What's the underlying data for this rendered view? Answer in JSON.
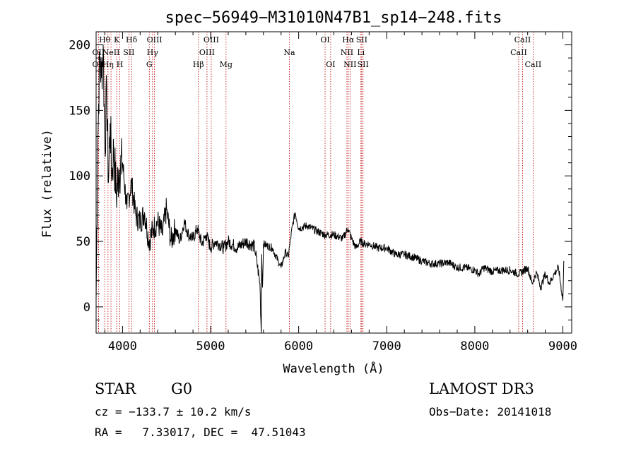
{
  "chart_data": {
    "type": "line",
    "title": "spec−56949−M31010N47B1_sp14−248.fits",
    "xlabel": "Wavelength (Å)",
    "ylabel": "Flux (relative)",
    "xlim": [
      3700,
      9100
    ],
    "ylim": [
      -20,
      210
    ],
    "xticks": [
      4000,
      5000,
      6000,
      7000,
      8000,
      9000
    ],
    "xtick_labels": [
      "4000",
      "5000",
      "6000",
      "7000",
      "8000",
      "9000"
    ],
    "yticks": [
      0,
      50,
      100,
      150,
      200
    ],
    "ytick_labels": [
      "0",
      "50",
      "100",
      "150",
      "200"
    ],
    "x": [
      3700,
      3720,
      3740,
      3760,
      3780,
      3800,
      3820,
      3840,
      3860,
      3880,
      3900,
      3930,
      3960,
      4000,
      4050,
      4100,
      4150,
      4200,
      4250,
      4300,
      4350,
      4400,
      4450,
      4500,
      4550,
      4600,
      4650,
      4700,
      4750,
      4800,
      4850,
      4900,
      4950,
      5000,
      5050,
      5100,
      5150,
      5200,
      5300,
      5400,
      5500,
      5560,
      5575,
      5580,
      5590,
      5600,
      5700,
      5800,
      5850,
      5880,
      5900,
      5930,
      5960,
      6000,
      6100,
      6200,
      6300,
      6400,
      6500,
      6560,
      6600,
      6650,
      6700,
      6750,
      6800,
      6900,
      7000,
      7100,
      7200,
      7300,
      7400,
      7500,
      7600,
      7700,
      7800,
      7900,
      8000,
      8050,
      8100,
      8200,
      8300,
      8400,
      8500,
      8600,
      8650,
      8700,
      8750,
      8800,
      8850,
      8900,
      8950,
      9000,
      9010
    ],
    "flux": [
      5,
      130,
      190,
      175,
      200,
      120,
      165,
      95,
      140,
      100,
      120,
      85,
      105,
      110,
      75,
      95,
      70,
      65,
      72,
      50,
      60,
      65,
      55,
      75,
      50,
      60,
      50,
      65,
      55,
      52,
      60,
      48,
      55,
      45,
      50,
      48,
      45,
      50,
      45,
      50,
      46,
      18,
      -20,
      40,
      15,
      48,
      45,
      30,
      42,
      38,
      48,
      62,
      72,
      60,
      62,
      58,
      55,
      55,
      52,
      60,
      52,
      45,
      50,
      48,
      48,
      45,
      45,
      40,
      40,
      38,
      35,
      33,
      33,
      34,
      30,
      30,
      28,
      25,
      30,
      27,
      28,
      28,
      25,
      30,
      18,
      26,
      15,
      25,
      18,
      25,
      30,
      5,
      35
    ],
    "lines": [
      {
        "label": "OII",
        "x": 3727,
        "row": 2
      },
      {
        "label": "OII",
        "x": 3727,
        "row": 1
      },
      {
        "label": "Hθ",
        "x": 3798,
        "row": 0
      },
      {
        "label": "Hη",
        "x": 3835,
        "row": 2
      },
      {
        "label": "NeII",
        "x": 3869,
        "row": 1
      },
      {
        "label": "K",
        "x": 3934,
        "row": 0
      },
      {
        "label": "H",
        "x": 3969,
        "row": 2
      },
      {
        "label": "SII",
        "x": 4072,
        "row": 1
      },
      {
        "label": "Hδ",
        "x": 4102,
        "row": 0
      },
      {
        "label": "G",
        "x": 4304,
        "row": 2
      },
      {
        "label": "Hγ",
        "x": 4340,
        "row": 1
      },
      {
        "label": "OIII",
        "x": 4363,
        "row": 0
      },
      {
        "label": "Hβ",
        "x": 4861,
        "row": 2
      },
      {
        "label": "OIII",
        "x": 4959,
        "row": 1
      },
      {
        "label": "OIII",
        "x": 5007,
        "row": 0
      },
      {
        "label": "Mg",
        "x": 5175,
        "row": 2
      },
      {
        "label": "Na",
        "x": 5894,
        "row": 1
      },
      {
        "label": "OI",
        "x": 6300,
        "row": 0
      },
      {
        "label": "OI",
        "x": 6363,
        "row": 2
      },
      {
        "label": "NII",
        "x": 6548,
        "row": 1
      },
      {
        "label": "Hα",
        "x": 6563,
        "row": 0
      },
      {
        "label": "NII",
        "x": 6583,
        "row": 2
      },
      {
        "label": "Li",
        "x": 6707,
        "row": 1
      },
      {
        "label": "SII",
        "x": 6716,
        "row": 0
      },
      {
        "label": "SII",
        "x": 6731,
        "row": 2
      },
      {
        "label": "CaII",
        "x": 8498,
        "row": 1
      },
      {
        "label": "CaII",
        "x": 8542,
        "row": 0
      },
      {
        "label": "CaII",
        "x": 8662,
        "row": 2
      }
    ]
  },
  "info": {
    "object_class": "STAR",
    "subclass": "G0",
    "survey": "LAMOST DR3",
    "redshift": "cz = −133.7 ± 10.2 km/s",
    "obs_date": "Obs−Date: 20141018",
    "coords": "RA =   7.33017, DEC =  47.51043"
  },
  "colors": {
    "spectrum": "#000000",
    "line_markers": "#c00000",
    "background": "#ffffff"
  }
}
